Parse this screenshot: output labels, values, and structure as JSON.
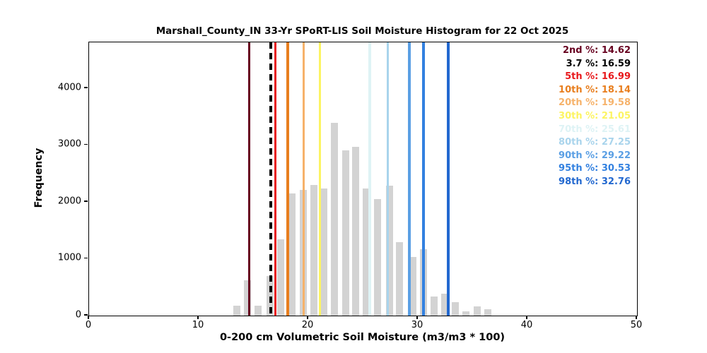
{
  "title": "Marshall_County_IN 33-Yr SPoRT-LIS Soil Moisture Histogram for 22 Oct 2025",
  "xlabel": "0-200 cm Volumetric Soil Moisture (m3/m3 * 100)",
  "ylabel": "Frequency",
  "colors": {
    "background": "#ffffff",
    "bar_fill": "#d3d3d3",
    "spine": "#000000"
  },
  "chart_data": {
    "type": "bar",
    "title": "Marshall_County_IN 33-Yr SPoRT-LIS Soil Moisture Histogram for 22 Oct 2025",
    "xlabel": "0-200 cm Volumetric Soil Moisture (m3/m3 * 100)",
    "ylabel": "Frequency",
    "xlim": [
      0,
      50
    ],
    "ylim": [
      0,
      4807
    ],
    "x_ticks": [
      0,
      10,
      20,
      30,
      40,
      50
    ],
    "y_ticks": [
      0,
      1000,
      2000,
      3000,
      4000
    ],
    "grid": false,
    "legend_position": "upper right",
    "bars": [
      {
        "x": 13.5,
        "freq": 180
      },
      {
        "x": 14.45,
        "freq": 620
      },
      {
        "x": 15.4,
        "freq": 170
      },
      {
        "x": 16.5,
        "freq": 690
      },
      {
        "x": 17.5,
        "freq": 1340
      },
      {
        "x": 18.5,
        "freq": 2150
      },
      {
        "x": 19.55,
        "freq": 2210
      },
      {
        "x": 20.5,
        "freq": 2300
      },
      {
        "x": 21.45,
        "freq": 2240
      },
      {
        "x": 22.4,
        "freq": 3390
      },
      {
        "x": 23.4,
        "freq": 2910
      },
      {
        "x": 24.35,
        "freq": 2970
      },
      {
        "x": 25.3,
        "freq": 2240
      },
      {
        "x": 26.3,
        "freq": 2050
      },
      {
        "x": 27.4,
        "freq": 2280
      },
      {
        "x": 28.35,
        "freq": 1290
      },
      {
        "x": 29.55,
        "freq": 1035
      },
      {
        "x": 30.5,
        "freq": 1170
      },
      {
        "x": 31.5,
        "freq": 330
      },
      {
        "x": 32.45,
        "freq": 385
      },
      {
        "x": 33.45,
        "freq": 240
      },
      {
        "x": 34.4,
        "freq": 70
      },
      {
        "x": 35.4,
        "freq": 165
      },
      {
        "x": 36.4,
        "freq": 115
      }
    ],
    "percentile_lines": [
      {
        "label": "2nd %",
        "value": 14.62,
        "color": "#67001f",
        "style": "solid"
      },
      {
        "label": "3.7 %",
        "value": 16.59,
        "color": "#000000",
        "style": "dashed"
      },
      {
        "label": "5th %",
        "value": 16.99,
        "color": "#e8191c",
        "style": "solid"
      },
      {
        "label": "10th %",
        "value": 18.14,
        "color": "#e87e1e",
        "style": "solid"
      },
      {
        "label": "20th %",
        "value": 19.58,
        "color": "#f6b26a",
        "style": "solid"
      },
      {
        "label": "30th %",
        "value": 21.05,
        "color": "#fcf462",
        "style": "solid"
      },
      {
        "label": "70th %",
        "value": 25.61,
        "color": "#def3f5",
        "style": "solid"
      },
      {
        "label": "80th %",
        "value": 27.25,
        "color": "#a9d4ec",
        "style": "solid"
      },
      {
        "label": "90th %",
        "value": 29.22,
        "color": "#5a9fe4",
        "style": "solid"
      },
      {
        "label": "95th %",
        "value": 30.53,
        "color": "#3381e0",
        "style": "solid"
      },
      {
        "label": "98th %",
        "value": 32.76,
        "color": "#2268cf",
        "style": "solid"
      }
    ],
    "legend_separator": ": "
  }
}
